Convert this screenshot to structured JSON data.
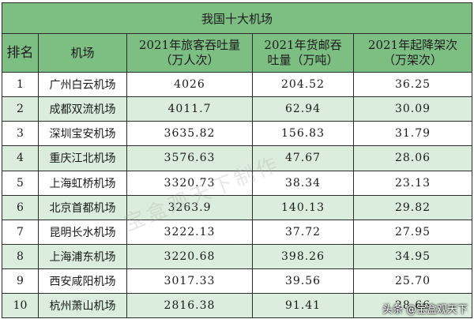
{
  "table": {
    "title": "我国十大机场",
    "headers": {
      "rank": "排名",
      "airport": "机场",
      "passengers_l1": "2021年旅客吞吐量",
      "passengers_l2": "（万人次）",
      "cargo_l1": "2021年货邮吞",
      "cargo_l2": "吐量（万吨）",
      "flights_l1": "2021年起降架次",
      "flights_l2": "（万架次）"
    },
    "rows": [
      {
        "rank": "1",
        "airport": "广州白云机场",
        "passengers": "4026",
        "cargo": "204.52",
        "flights": "36.25"
      },
      {
        "rank": "2",
        "airport": "成都双流机场",
        "passengers": "4011.7",
        "cargo": "62.94",
        "flights": "30.09"
      },
      {
        "rank": "3",
        "airport": "深圳宝安机场",
        "passengers": "3635.82",
        "cargo": "156.83",
        "flights": "31.79"
      },
      {
        "rank": "4",
        "airport": "重庆江北机场",
        "passengers": "3576.63",
        "cargo": "47.67",
        "flights": "28.06"
      },
      {
        "rank": "5",
        "airport": "上海虹桥机场",
        "passengers": "3320.73",
        "cargo": "38.34",
        "flights": "23.13"
      },
      {
        "rank": "6",
        "airport": "北京首都机场",
        "passengers": "3263.9",
        "cargo": "140.13",
        "flights": "29.82"
      },
      {
        "rank": "7",
        "airport": "昆明长水机场",
        "passengers": "3222.13",
        "cargo": "37.72",
        "flights": "27.95"
      },
      {
        "rank": "8",
        "airport": "上海浦东机场",
        "passengers": "3220.68",
        "cargo": "398.26",
        "flights": "34.95"
      },
      {
        "rank": "9",
        "airport": "西安咸阳机场",
        "passengers": "3017.33",
        "cargo": "39.56",
        "flights": "25.70"
      },
      {
        "rank": "10",
        "airport": "杭州萧山机场",
        "passengers": "2816.38",
        "cargo": "91.41",
        "flights": "28.66"
      }
    ]
  },
  "watermark": "宝盒观天下制作",
  "credit": {
    "source": "头条",
    "handle": "@宝盒观天下"
  },
  "colors": {
    "header_green": "#7dbf83",
    "row_green": "#dbeedd"
  }
}
